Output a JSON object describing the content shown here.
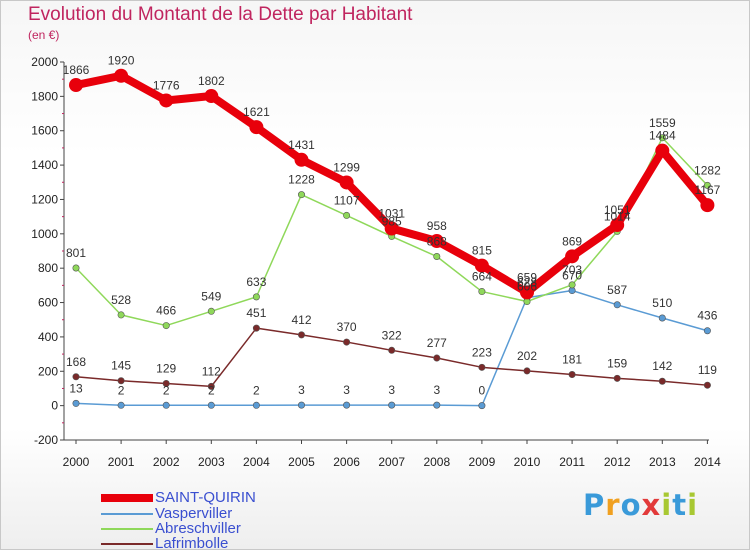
{
  "title": "Evolution du Montant de la Dette par Habitant",
  "subtitle": "(en €)",
  "logo": {
    "letters": [
      "P",
      "r",
      "o",
      "x",
      "i",
      "t",
      "i"
    ],
    "colors": [
      "#3a9ad9",
      "#f0a020",
      "#3a9ad9",
      "#e23a3a",
      "#a8c832",
      "#3a9ad9",
      "#a8c832"
    ]
  },
  "chart_data": {
    "type": "line",
    "title": "Evolution du Montant de la Dette par Habitant",
    "ylabel": "(en €)",
    "xlabel": "",
    "ylim": [
      -200,
      2000
    ],
    "yticks": [
      -200,
      0,
      200,
      400,
      600,
      800,
      1000,
      1200,
      1400,
      1600,
      1800,
      2000
    ],
    "grid": false,
    "legend_position": "bottom-left",
    "categories": [
      "2000",
      "2001",
      "2002",
      "2003",
      "2004",
      "2005",
      "2006",
      "2007",
      "2008",
      "2009",
      "2010",
      "2011",
      "2012",
      "2013",
      "2014"
    ],
    "series": [
      {
        "name": "SAINT-QUIRIN",
        "color": "#e8000b",
        "emphasis": true,
        "values": [
          1866,
          1920,
          1776,
          1802,
          1621,
          1431,
          1299,
          1031,
          958,
          815,
          659,
          869,
          1051,
          1484,
          1167
        ]
      },
      {
        "name": "Vasperviller",
        "color": "#5a9bd4",
        "values": [
          13,
          2,
          2,
          2,
          2,
          3,
          3,
          3,
          3,
          0,
          628,
          670,
          587,
          510,
          436
        ]
      },
      {
        "name": "Abreschviller",
        "color": "#8fd85a",
        "values": [
          801,
          528,
          466,
          549,
          633,
          1228,
          1107,
          985,
          868,
          664,
          606,
          703,
          1014,
          1559,
          1282
        ]
      },
      {
        "name": "Lafrimbolle",
        "color": "#7a2a2a",
        "values": [
          168,
          145,
          129,
          112,
          451,
          412,
          370,
          322,
          277,
          223,
          202,
          181,
          159,
          142,
          119
        ]
      }
    ]
  }
}
